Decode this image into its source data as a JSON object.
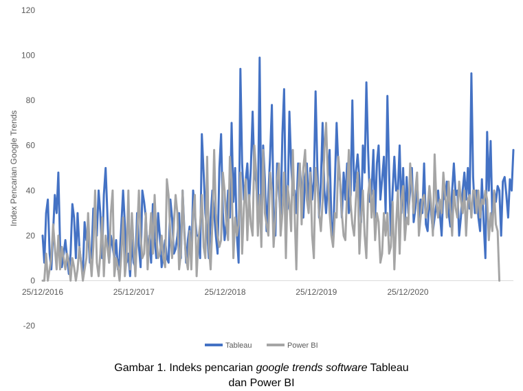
{
  "chart_data": {
    "type": "line",
    "ylabel": "Index Pencarian Google Trends",
    "ylim": [
      -20,
      120
    ],
    "yticks": [
      -20,
      0,
      20,
      40,
      60,
      80,
      100,
      120
    ],
    "xlabels": [
      "25/12/2016",
      "25/12/2017",
      "25/12/2018",
      "25/12/2019",
      "25/12/2020"
    ],
    "x_start": "2016-12-25",
    "x_step_days": 7,
    "grid": false,
    "legend_position": "bottom",
    "series": [
      {
        "name": "Tableau",
        "color": "#4472C4",
        "values": [
          20,
          8,
          30,
          36,
          12,
          5,
          22,
          38,
          30,
          48,
          15,
          6,
          12,
          18,
          10,
          3,
          12,
          34,
          28,
          10,
          30,
          15,
          8,
          4,
          26,
          18,
          22,
          8,
          12,
          32,
          30,
          20,
          40,
          30,
          10,
          38,
          50,
          30,
          8,
          20,
          15,
          10,
          18,
          5,
          10,
          25,
          40,
          25,
          8,
          12,
          2,
          18,
          8,
          6,
          30,
          15,
          6,
          40,
          35,
          28,
          12,
          20,
          8,
          34,
          18,
          10,
          30,
          20,
          6,
          12,
          18,
          10,
          8,
          36,
          28,
          12,
          14,
          20,
          30,
          10,
          40,
          22,
          8,
          18,
          24,
          10,
          40,
          30,
          20,
          20,
          10,
          65,
          48,
          30,
          22,
          10,
          28,
          40,
          30,
          20,
          12,
          50,
          65,
          30,
          18,
          26,
          40,
          28,
          70,
          35,
          50,
          20,
          8,
          94,
          52,
          36,
          44,
          52,
          35,
          50,
          75,
          48,
          44,
          30,
          99,
          28,
          60,
          45,
          22,
          38,
          55,
          78,
          30,
          20,
          52,
          40,
          28,
          65,
          85,
          30,
          32,
          75,
          52,
          38,
          40,
          30,
          52,
          50,
          40,
          28,
          46,
          52,
          32,
          50,
          36,
          44,
          84,
          50,
          28,
          44,
          70,
          40,
          30,
          45,
          58,
          26,
          20,
          44,
          70,
          50,
          44,
          28,
          48,
          36,
          52,
          30,
          38,
          80,
          40,
          48,
          56,
          45,
          26,
          60,
          48,
          88,
          58,
          35,
          40,
          58,
          28,
          52,
          60,
          36,
          45,
          55,
          30,
          82,
          48,
          20,
          40,
          55,
          40,
          40,
          60,
          30,
          50,
          26,
          46,
          30,
          40,
          50,
          26,
          32,
          44,
          28,
          36,
          30,
          52,
          25,
          22,
          38,
          30,
          22,
          28,
          34,
          40,
          30,
          20,
          40,
          36,
          44,
          30,
          24,
          40,
          52,
          38,
          40,
          20,
          28,
          40,
          48,
          36,
          50,
          32,
          92,
          46,
          30,
          40,
          28,
          22,
          45,
          26,
          10,
          66,
          40,
          62,
          28,
          40,
          35,
          42,
          40,
          20,
          44,
          46,
          38,
          28,
          45,
          40,
          58
        ]
      },
      {
        "name": "Power BI",
        "color": "#A5A5A5",
        "values": [
          0,
          0,
          12,
          0,
          5,
          10,
          25,
          15,
          5,
          20,
          5,
          15,
          10,
          5,
          12,
          8,
          0,
          10,
          6,
          0,
          5,
          15,
          8,
          0,
          5,
          10,
          30,
          12,
          2,
          15,
          40,
          8,
          2,
          12,
          28,
          2,
          20,
          15,
          8,
          30,
          40,
          2,
          10,
          6,
          0,
          12,
          28,
          2,
          10,
          40,
          5,
          30,
          15,
          2,
          20,
          40,
          20,
          10,
          12,
          30,
          5,
          18,
          30,
          12,
          38,
          20,
          10,
          12,
          20,
          10,
          6,
          45,
          38,
          20,
          10,
          25,
          38,
          30,
          5,
          12,
          40,
          20,
          10,
          5,
          22,
          5,
          30,
          38,
          2,
          18,
          25,
          38,
          15,
          10,
          55,
          15,
          5,
          25,
          58,
          30,
          20,
          15,
          18,
          48,
          40,
          25,
          18,
          55,
          45,
          10,
          28,
          20,
          25,
          48,
          12,
          32,
          45,
          18,
          38,
          25,
          20,
          60,
          48,
          20,
          38,
          15,
          58,
          30,
          25,
          20,
          48,
          40,
          15,
          28,
          45,
          52,
          20,
          30,
          48,
          10,
          42,
          35,
          22,
          58,
          30,
          5,
          40,
          52,
          25,
          50,
          58,
          36,
          30,
          48,
          20,
          10,
          50,
          42,
          30,
          22,
          35,
          58,
          70,
          45,
          30,
          20,
          15,
          30,
          28,
          55,
          45,
          30,
          20,
          18,
          40,
          58,
          34,
          25,
          20,
          36,
          48,
          12,
          28,
          40,
          20,
          10,
          38,
          45,
          28,
          40,
          18,
          30,
          26,
          8,
          12,
          30,
          20,
          30,
          12,
          15,
          35,
          5,
          25,
          40,
          12,
          36,
          42,
          18,
          28,
          25,
          52,
          42,
          30,
          40,
          48,
          20,
          28,
          36,
          38,
          28,
          32,
          42,
          34,
          20,
          56,
          35,
          28,
          36,
          30,
          48,
          38,
          28,
          44,
          32,
          20,
          40,
          32,
          28,
          44,
          36,
          30,
          40,
          20,
          36,
          38,
          28,
          40,
          40,
          30,
          40,
          28,
          36,
          34,
          40,
          36,
          18,
          30,
          22,
          40,
          25,
          22,
          0
        ]
      }
    ]
  },
  "caption": {
    "part1": "Gambar 1. Indeks pencarian ",
    "emphasis": "google trends software",
    "part2": " Tableau",
    "line2": "dan Power BI"
  }
}
